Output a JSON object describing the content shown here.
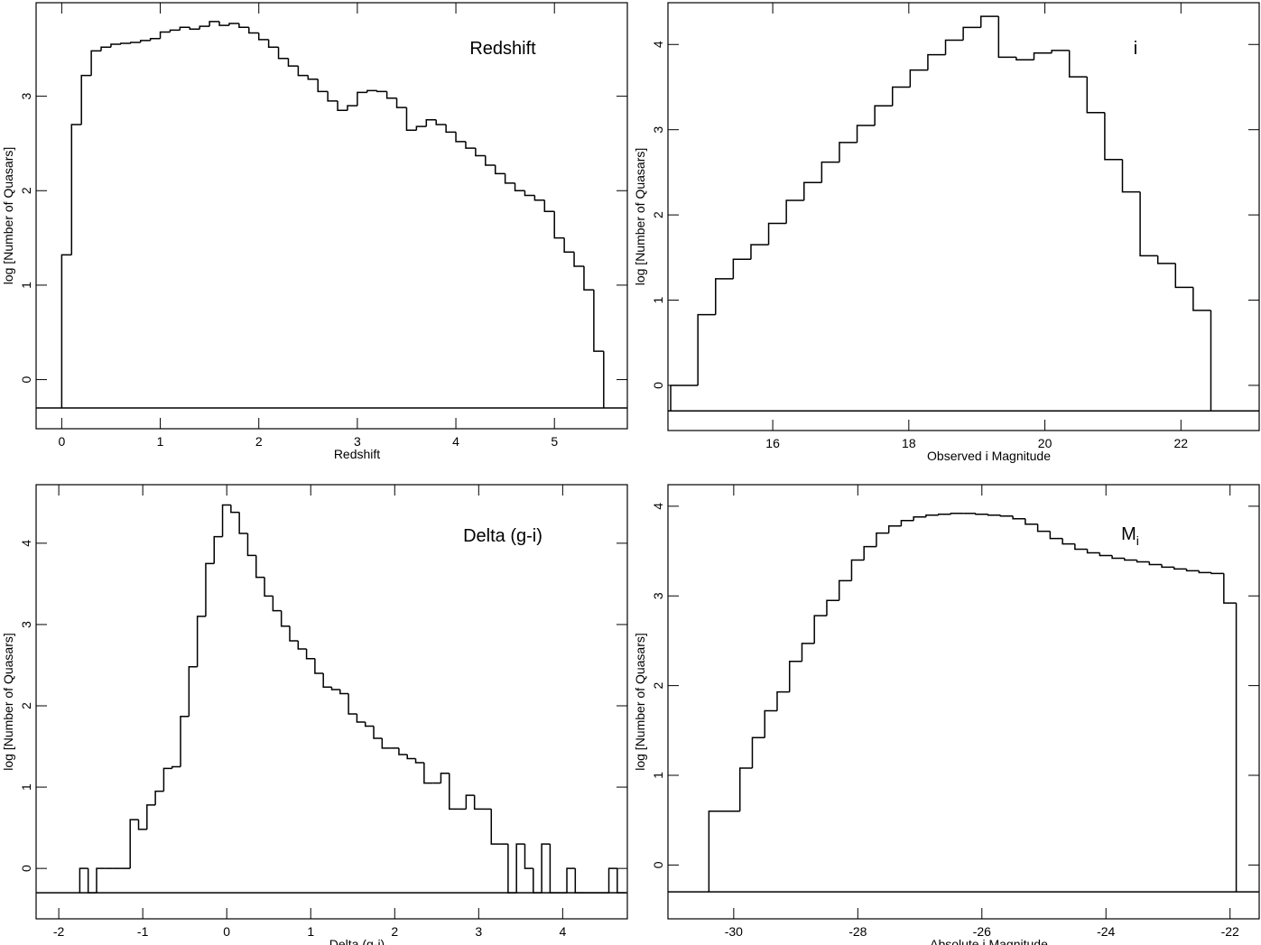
{
  "chart_data": [
    {
      "type": "histogram",
      "annotation": "Redshift",
      "xlabel": "Redshift",
      "ylabel": "log [Number of Quasars]",
      "bins": [
        0,
        0.1,
        0.2,
        0.3,
        0.4,
        0.5,
        0.6,
        0.7,
        0.8,
        0.9,
        1,
        1.1,
        1.2,
        1.3,
        1.4,
        1.5,
        1.6,
        1.7,
        1.8,
        1.9,
        2,
        2.1,
        2.2,
        2.3,
        2.4,
        2.5,
        2.6,
        2.7,
        2.8,
        2.9,
        3,
        3.1,
        3.2,
        3.3,
        3.4,
        3.5,
        3.6,
        3.7,
        3.8,
        3.9,
        4,
        4.1,
        4.2,
        4.3,
        4.4,
        4.5,
        4.6,
        4.7,
        4.8,
        4.9,
        5,
        5.1,
        5.2,
        5.3,
        5.4,
        5.5
      ],
      "values": [
        1.32,
        2.7,
        3.22,
        3.48,
        3.52,
        3.55,
        3.56,
        3.57,
        3.59,
        3.61,
        3.68,
        3.7,
        3.73,
        3.71,
        3.74,
        3.79,
        3.75,
        3.77,
        3.73,
        3.67,
        3.6,
        3.52,
        3.4,
        3.32,
        3.22,
        3.18,
        3.05,
        2.95,
        2.85,
        2.9,
        3.04,
        3.06,
        3.05,
        2.98,
        2.88,
        2.64,
        2.68,
        2.75,
        2.7,
        2.62,
        2.52,
        2.45,
        2.37,
        2.27,
        2.18,
        2.08,
        2.0,
        1.95,
        1.9,
        1.78,
        1.5,
        1.35,
        1.2,
        0.95,
        0.3
      ],
      "color": "#000000",
      "baseline": -0.3,
      "xlim": [
        -0.26,
        5.74
      ],
      "xticks": [
        0,
        1,
        2,
        3,
        4,
        5
      ],
      "ylim": [
        -0.52,
        3.99
      ],
      "yticks": [
        0,
        1,
        2,
        3
      ]
    },
    {
      "type": "histogram",
      "annotation": "i",
      "xlabel": "Observed i Magnitude",
      "ylabel": "log [Number of Quasars]",
      "bins": [
        14.5,
        14.9,
        15.16,
        15.42,
        15.68,
        15.94,
        16.2,
        16.46,
        16.72,
        16.98,
        17.24,
        17.5,
        17.76,
        18.02,
        18.28,
        18.54,
        18.8,
        19.06,
        19.32,
        19.58,
        19.84,
        20.1,
        20.36,
        20.62,
        20.88,
        21.14,
        21.4,
        21.66,
        21.92,
        22.18,
        22.44
      ],
      "values": [
        0,
        0.83,
        1.25,
        1.48,
        1.65,
        1.9,
        2.17,
        2.38,
        2.62,
        2.85,
        3.05,
        3.28,
        3.5,
        3.7,
        3.88,
        4.05,
        4.2,
        4.33,
        3.85,
        3.82,
        3.9,
        3.93,
        3.62,
        3.2,
        2.65,
        2.27,
        1.52,
        1.43,
        1.15,
        0.88
      ],
      "color": "#000000",
      "baseline": -0.3,
      "xlim": [
        14.46,
        23.15
      ],
      "xticks": [
        16,
        18,
        20,
        22
      ],
      "ylim": [
        -0.53,
        4.49
      ],
      "yticks": [
        0,
        1,
        2,
        3,
        4
      ]
    },
    {
      "type": "histogram",
      "annotation": "Delta (g-i)",
      "xlabel": "Delta (g-i)",
      "ylabel": "log [Number of Quasars]",
      "bins": [
        -1.75,
        -1.65,
        -1.55,
        -1.45,
        -1.35,
        -1.25,
        -1.15,
        -1.05,
        -0.95,
        -0.85,
        -0.75,
        -0.65,
        -0.55,
        -0.45,
        -0.35,
        -0.25,
        -0.15,
        -0.05,
        0.05,
        0.15,
        0.25,
        0.35,
        0.45,
        0.55,
        0.65,
        0.75,
        0.85,
        0.95,
        1.05,
        1.15,
        1.25,
        1.35,
        1.45,
        1.55,
        1.65,
        1.75,
        1.85,
        1.95,
        2.05,
        2.15,
        2.25,
        2.35,
        2.45,
        2.55,
        2.65,
        2.75,
        2.85,
        2.95,
        3.05,
        3.15,
        3.25,
        3.35,
        3.45,
        3.55,
        3.65,
        3.75,
        3.85,
        3.95,
        4.05,
        4.15,
        4.25,
        4.35,
        4.45,
        4.55,
        4.65,
        4.75
      ],
      "values": [
        0,
        null,
        0,
        0,
        0,
        0,
        0.6,
        0.48,
        0.78,
        0.95,
        1.23,
        1.25,
        1.87,
        2.48,
        3.1,
        3.75,
        4.08,
        4.47,
        4.38,
        4.12,
        3.85,
        3.58,
        3.35,
        3.17,
        2.98,
        2.8,
        2.7,
        2.58,
        2.4,
        2.23,
        2.2,
        2.15,
        1.9,
        1.8,
        1.75,
        1.6,
        1.48,
        1.48,
        1.4,
        1.35,
        1.3,
        1.05,
        1.05,
        1.17,
        0.73,
        0.73,
        0.9,
        0.73,
        0.73,
        0.3,
        0.3,
        null,
        0.3,
        0,
        null,
        0.3,
        null,
        null,
        0,
        null,
        null,
        null,
        null,
        0,
        null
      ],
      "color": "#000000",
      "baseline": -0.3,
      "xlim": [
        -2.27,
        4.77
      ],
      "xticks": [
        -2,
        -1,
        0,
        1,
        2,
        3,
        4
      ],
      "ylim": [
        -0.62,
        4.72
      ],
      "yticks": [
        0,
        1,
        2,
        3,
        4
      ]
    },
    {
      "type": "histogram",
      "annotation": "M",
      "annotation_sub": "i",
      "xlabel": "Absolute i Magnitude",
      "ylabel": "log [Number of Quasars]",
      "bins": [
        -30.4,
        -29.9,
        -29.7,
        -29.5,
        -29.3,
        -29.1,
        -28.9,
        -28.7,
        -28.5,
        -28.3,
        -28.1,
        -27.9,
        -27.7,
        -27.5,
        -27.3,
        -27.1,
        -26.9,
        -26.7,
        -26.5,
        -26.3,
        -26.1,
        -25.9,
        -25.7,
        -25.5,
        -25.3,
        -25.1,
        -24.9,
        -24.7,
        -24.5,
        -24.3,
        -24.1,
        -23.9,
        -23.7,
        -23.5,
        -23.3,
        -23.1,
        -22.9,
        -22.7,
        -22.5,
        -22.3,
        -22.1,
        -21.9
      ],
      "values": [
        0.6,
        1.08,
        1.42,
        1.72,
        1.93,
        2.27,
        2.47,
        2.78,
        2.95,
        3.17,
        3.4,
        3.55,
        3.7,
        3.78,
        3.84,
        3.88,
        3.9,
        3.91,
        3.92,
        3.92,
        3.91,
        3.9,
        3.89,
        3.86,
        3.8,
        3.72,
        3.64,
        3.58,
        3.52,
        3.48,
        3.45,
        3.42,
        3.4,
        3.38,
        3.35,
        3.32,
        3.3,
        3.28,
        3.26,
        3.25,
        2.92
      ],
      "color": "#000000",
      "baseline": -0.3,
      "xlim": [
        -31.06,
        -21.53
      ],
      "xticks": [
        -30,
        -28,
        -26,
        -24,
        -22
      ],
      "ylim": [
        -0.6,
        4.24
      ],
      "yticks": [
        0,
        1,
        2,
        3,
        4
      ]
    }
  ]
}
